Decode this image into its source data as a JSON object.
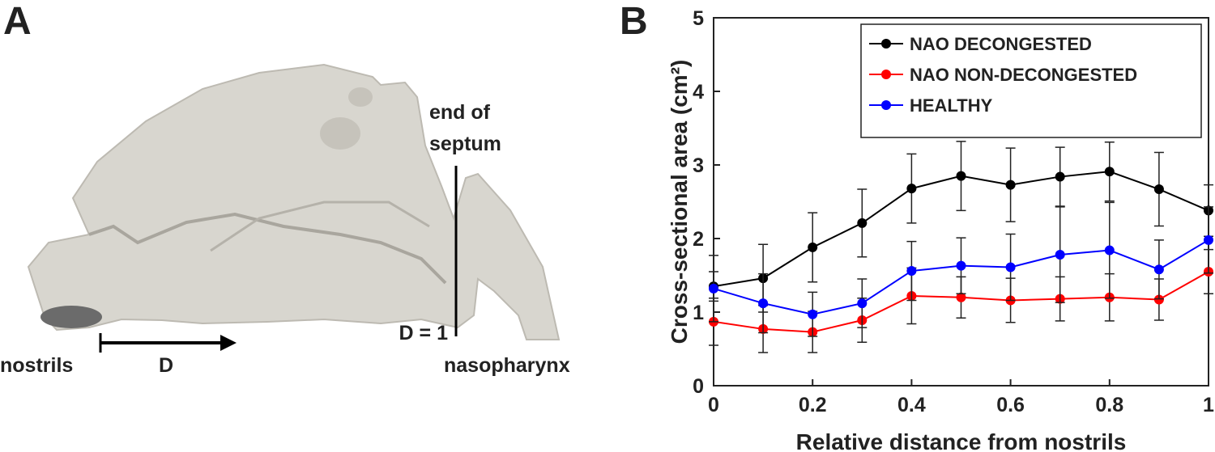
{
  "panels": {
    "a_label": "A",
    "b_label": "B"
  },
  "panel_a": {
    "septum_line1": "end of",
    "septum_line2": "septum",
    "d_end": "D = 1",
    "nostrils": "nostrils",
    "d_label": "D",
    "nasopharynx": "nasopharynx"
  },
  "chart_data": {
    "type": "line",
    "xlabel": "Relative distance from nostrils",
    "ylabel": "Cross-sectional area (cm²)",
    "x": [
      0,
      0.1,
      0.2,
      0.3,
      0.4,
      0.5,
      0.6,
      0.7,
      0.8,
      0.9,
      1
    ],
    "series": [
      {
        "name": "NAO DECONGESTED",
        "color": "#000000",
        "values": [
          1.35,
          1.46,
          1.88,
          2.21,
          2.68,
          2.85,
          2.73,
          2.84,
          2.91,
          2.67,
          2.38
        ],
        "errors": [
          0.2,
          0.46,
          0.47,
          0.46,
          0.47,
          0.47,
          0.5,
          0.4,
          0.4,
          0.5,
          0.35
        ]
      },
      {
        "name": "NAO NON-DECONGESTED",
        "color": "#ff0000",
        "values": [
          0.87,
          0.77,
          0.73,
          0.89,
          1.22,
          1.2,
          1.16,
          1.18,
          1.2,
          1.17,
          1.55
        ],
        "errors": [
          0.32,
          0.32,
          0.28,
          0.3,
          0.38,
          0.28,
          0.3,
          0.3,
          0.32,
          0.28,
          0.3
        ]
      },
      {
        "name": "HEALTHY",
        "color": "#0000ff",
        "values": [
          1.32,
          1.12,
          0.97,
          1.12,
          1.56,
          1.63,
          1.61,
          1.78,
          1.84,
          1.58,
          1.98
        ],
        "errors": [
          0.45,
          0.4,
          0.3,
          0.33,
          0.4,
          0.38,
          0.45,
          0.65,
          0.65,
          0.4,
          0.45
        ]
      }
    ],
    "xlim": [
      0,
      1
    ],
    "xticks": [
      0,
      0.2,
      0.4,
      0.6,
      0.8,
      1
    ],
    "ylim": [
      0,
      5
    ],
    "yticks": [
      0,
      1,
      2,
      3,
      4,
      5
    ],
    "legend": "upper right",
    "grid": false
  }
}
